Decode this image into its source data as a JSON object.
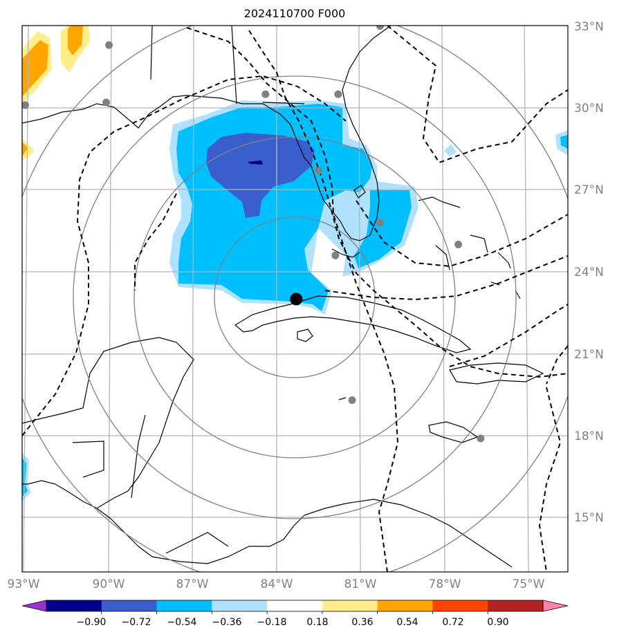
{
  "title": "2024110700 F000",
  "map": {
    "lat_labels": [
      "33°N",
      "30°N",
      "27°N",
      "24°N",
      "21°N",
      "18°N",
      "15°N"
    ],
    "lon_labels": [
      "93°W",
      "90°W",
      "87°W",
      "84°W",
      "81°W",
      "78°W",
      "75°W"
    ],
    "storm_center": {
      "lon": -83.3,
      "lat": 23.0
    },
    "range_rings_count": 4,
    "stations": [
      {
        "lon": -90.0,
        "lat": 32.3
      },
      {
        "lon": -90.1,
        "lat": 30.2
      },
      {
        "lon": -93.0,
        "lat": 30.1
      },
      {
        "lon": -84.4,
        "lat": 30.5
      },
      {
        "lon": -81.8,
        "lat": 30.5
      },
      {
        "lon": -80.3,
        "lat": 33.0
      },
      {
        "lon": -82.5,
        "lat": 27.7
      },
      {
        "lon": -80.3,
        "lat": 25.8
      },
      {
        "lon": -81.9,
        "lat": 24.6
      },
      {
        "lon": -77.5,
        "lat": 25.0
      },
      {
        "lon": -81.3,
        "lat": 19.3
      },
      {
        "lon": -76.7,
        "lat": 17.9
      }
    ]
  },
  "colorbar": {
    "tick_labels": [
      "−0.90",
      "−0.72",
      "−0.54",
      "−0.36",
      "−0.18",
      "0.18",
      "0.36",
      "0.54",
      "0.72",
      "0.90"
    ],
    "colors": [
      "#9b30d9",
      "#00008b",
      "#3a5fcd",
      "#00bfff",
      "#b0e2ff",
      "#ffffff",
      "#ffec8b",
      "#ffa500",
      "#ff4500",
      "#b22222",
      "#ff82ab"
    ]
  }
}
